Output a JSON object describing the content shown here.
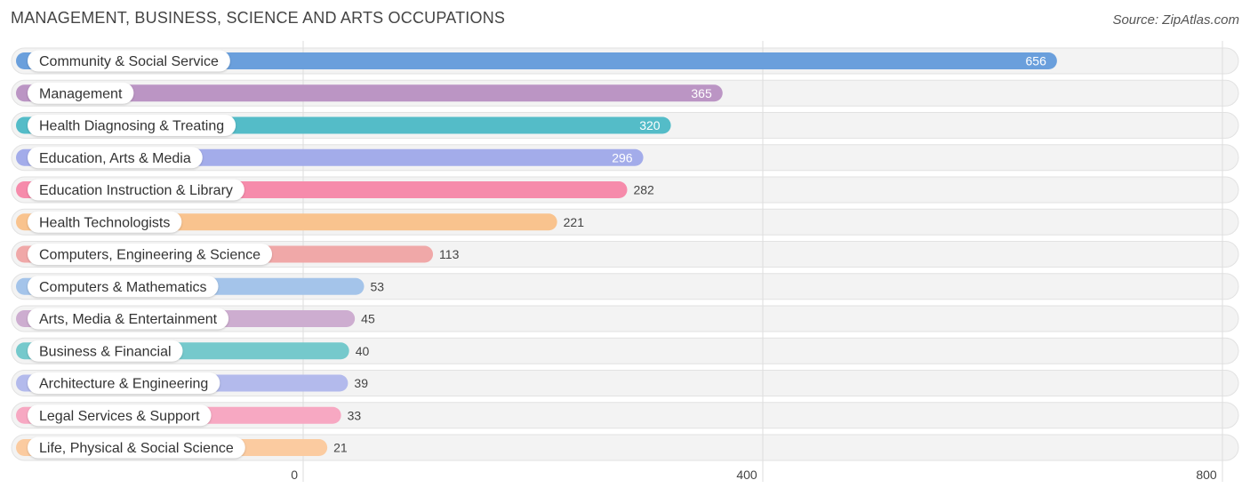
{
  "header": {
    "title": "MANAGEMENT, BUSINESS, SCIENCE AND ARTS OCCUPATIONS",
    "source": "Source: ZipAtlas.com"
  },
  "chart_data": {
    "type": "bar",
    "orientation": "horizontal",
    "title": "MANAGEMENT, BUSINESS, SCIENCE AND ARTS OCCUPATIONS",
    "xlim": [
      0,
      800
    ],
    "x_ticks": [
      0,
      400,
      800
    ],
    "grid": true,
    "categories": [
      "Community & Social Service",
      "Management",
      "Health Diagnosing & Treating",
      "Education, Arts & Media",
      "Education Instruction & Library",
      "Health Technologists",
      "Computers, Engineering & Science",
      "Computers & Mathematics",
      "Arts, Media & Entertainment",
      "Business & Financial",
      "Architecture & Engineering",
      "Legal Services & Support",
      "Life, Physical & Social Science"
    ],
    "values": [
      656,
      365,
      320,
      296,
      282,
      221,
      113,
      53,
      45,
      40,
      39,
      33,
      21
    ],
    "colors": [
      "#6a9fdc",
      "#bb95c4",
      "#54bcc8",
      "#a3acea",
      "#f68bab",
      "#f9c38e",
      "#f0a8a8",
      "#a4c4ea",
      "#cdadd0",
      "#75c9cc",
      "#b3baec",
      "#f7a8c2",
      "#fbcba0"
    ]
  }
}
